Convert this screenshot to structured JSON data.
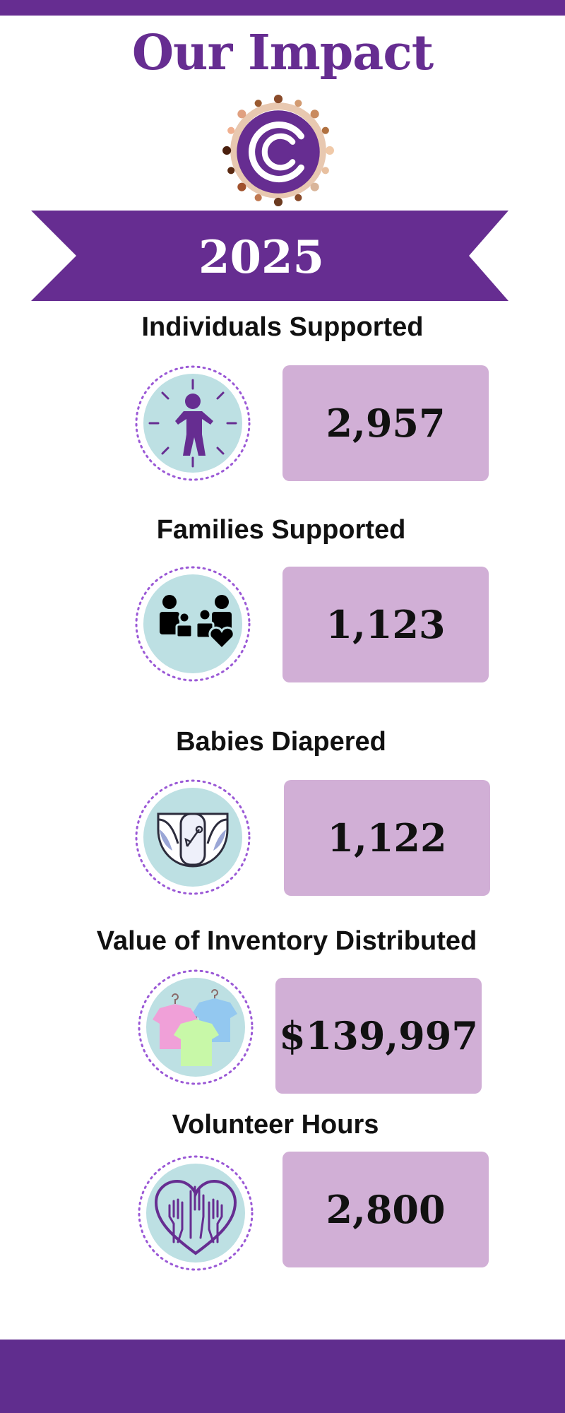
{
  "header": {
    "title": "Our Impact",
    "year": "2025"
  },
  "colors": {
    "brand_purple": "#662d91",
    "value_box": "#d1afd6",
    "icon_circle": "#bde0e3",
    "dotted_ring": "#9b59d6"
  },
  "stats": [
    {
      "label": "Individuals Supported",
      "value": "2,957",
      "icon": "child-figure-icon"
    },
    {
      "label": "Families Supported",
      "value": "1,123",
      "icon": "family-heart-icon"
    },
    {
      "label": "Babies Diapered",
      "value": "1,122",
      "icon": "diaper-icon"
    },
    {
      "label": "Value of Inventory Distributed",
      "value": "$139,997",
      "icon": "clothing-hangers-icon"
    },
    {
      "label": "Volunteer Hours",
      "value": "2,800",
      "icon": "hands-heart-icon"
    }
  ]
}
